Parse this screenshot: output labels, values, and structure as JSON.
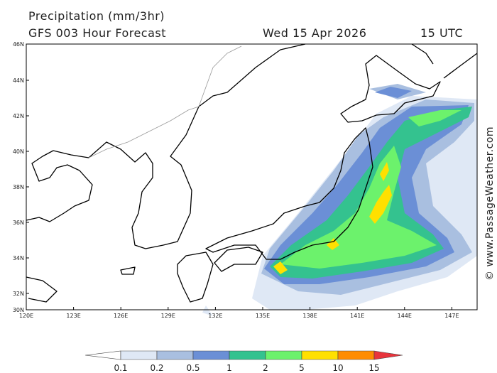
{
  "header": {
    "title": "Precipitation (mm/3hr)",
    "subtitle": "GFS 003 Hour Forecast",
    "date": "Wed 15 Apr 2026",
    "time": "15 UTC"
  },
  "map": {
    "lat_labels": [
      "46N",
      "44N",
      "42N",
      "40N",
      "38N",
      "36N",
      "34N",
      "32N",
      "30N"
    ],
    "lon_labels": [
      "120E",
      "123E",
      "126E",
      "129E",
      "132E",
      "135E",
      "138E",
      "141E",
      "144E",
      "147E"
    ]
  },
  "legend": {
    "labels": [
      "0.1",
      "0.2",
      "0.5",
      "1",
      "2",
      "5",
      "10",
      "15"
    ],
    "colors": [
      "#ffffff",
      "#dfe8f5",
      "#a9bfe0",
      "#6b8fd6",
      "#34c28f",
      "#6cf26c",
      "#ffe000",
      "#ff8c00",
      "#e8343c"
    ]
  },
  "credit": "© www.PassageWeather.com"
}
